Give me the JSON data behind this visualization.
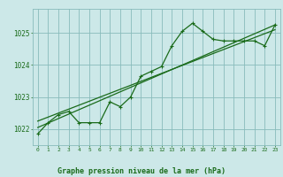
{
  "title": "Graphe pression niveau de la mer (hPa)",
  "x_values": [
    0,
    1,
    2,
    3,
    4,
    5,
    6,
    7,
    8,
    9,
    10,
    11,
    12,
    13,
    14,
    15,
    16,
    17,
    18,
    19,
    20,
    21,
    22,
    23
  ],
  "y_values": [
    1021.85,
    1022.2,
    1022.45,
    1022.55,
    1022.2,
    1022.2,
    1022.2,
    1022.85,
    1022.7,
    1023.0,
    1023.65,
    1023.8,
    1023.95,
    1024.6,
    1025.05,
    1025.3,
    1025.05,
    1024.8,
    1024.75,
    1024.75,
    1024.75,
    1024.75,
    1024.6,
    1025.25
  ],
  "trend_line": [
    [
      0,
      1022.05
    ],
    [
      23,
      1025.25
    ]
  ],
  "trend_line2": [
    [
      0,
      1022.25
    ],
    [
      23,
      1025.1
    ]
  ],
  "bg_color": "#cce8e8",
  "grid_color": "#88bbbb",
  "line_color": "#1a6b1a",
  "text_color": "#1a6b1a",
  "ylim": [
    1021.5,
    1025.75
  ],
  "yticks": [
    1022,
    1023,
    1024,
    1025
  ],
  "xlim": [
    -0.5,
    23.5
  ]
}
